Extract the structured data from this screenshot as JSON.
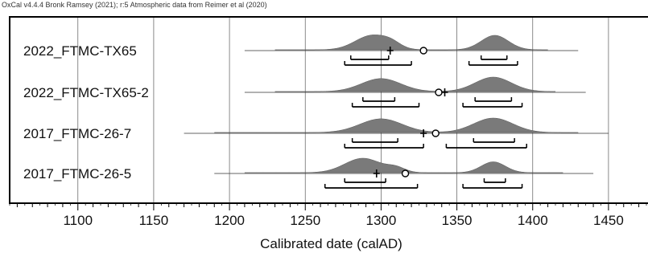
{
  "header": "OxCal v4.4.4 Bronk Ramsey (2021); r:5 Atmospheric data from Reimer et al (2020)",
  "chart_data": {
    "type": "multiple-plot",
    "xlabel": "Calibrated date (calAD)",
    "xlim": [
      1055,
      1475
    ],
    "xticks": [
      1100,
      1150,
      1200,
      1250,
      1300,
      1350,
      1400,
      1450
    ],
    "grid": true,
    "samples": [
      {
        "label": "2022_FTMC-TX65",
        "range": [
          1210,
          1430
        ],
        "peaks": [
          {
            "center": 1294,
            "width": 11,
            "amp": 1.0
          },
          {
            "center": 1307,
            "width": 6,
            "amp": 0.28
          },
          {
            "center": 1375,
            "width": 9,
            "amp": 1.0
          }
        ],
        "mean": 1306,
        "median": 1328,
        "ranges_68": [
          [
            1280,
            1305
          ],
          [
            1366,
            1383
          ]
        ],
        "ranges_95": [
          [
            1276,
            1320
          ],
          [
            1358,
            1390
          ]
        ]
      },
      {
        "label": "2022_FTMC-TX65-2",
        "range": [
          1210,
          1435
        ],
        "peaks": [
          {
            "center": 1300,
            "width": 13,
            "amp": 0.9
          },
          {
            "center": 1374,
            "width": 12,
            "amp": 1.0
          }
        ],
        "mean": 1342,
        "median": 1338,
        "ranges_68": [
          [
            1288,
            1309
          ],
          [
            1362,
            1386
          ]
        ],
        "ranges_95": [
          [
            1281,
            1325
          ],
          [
            1354,
            1393
          ]
        ]
      },
      {
        "label": "2017_FTMC-26-7",
        "range": [
          1170,
          1450
        ],
        "peaks": [
          {
            "center": 1300,
            "width": 14,
            "amp": 0.95
          },
          {
            "center": 1374,
            "width": 13,
            "amp": 1.0
          }
        ],
        "mean": 1328,
        "median": 1336,
        "ranges_68": [
          [
            1281,
            1311
          ],
          [
            1361,
            1388
          ]
        ],
        "ranges_95": [
          [
            1276,
            1328
          ],
          [
            1343,
            1396
          ]
        ]
      },
      {
        "label": "2017_FTMC-26-5",
        "range": [
          1190,
          1440
        ],
        "peaks": [
          {
            "center": 1288,
            "width": 12,
            "amp": 1.0
          },
          {
            "center": 1310,
            "width": 6,
            "amp": 0.3
          },
          {
            "center": 1374,
            "width": 8,
            "amp": 0.75
          }
        ],
        "mean": 1297,
        "median": 1316,
        "ranges_68": [
          [
            1276,
            1303
          ],
          [
            1368,
            1382
          ]
        ],
        "ranges_95": [
          [
            1263,
            1324
          ],
          [
            1354,
            1393
          ]
        ]
      }
    ]
  }
}
